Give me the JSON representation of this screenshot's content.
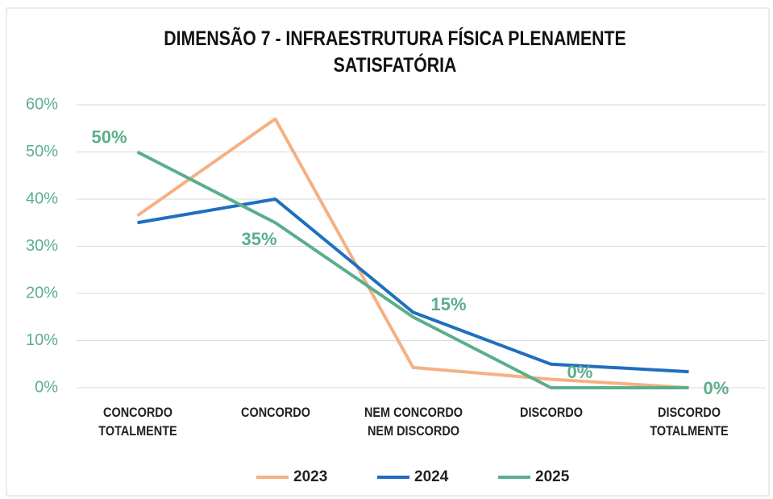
{
  "chart_data": {
    "type": "line",
    "title": "DIMENSÃO 7 - INFRAESTRUTURA FÍSICA  PLENAMENTE SATISFATÓRIA",
    "categories": [
      "CONCORDO TOTALMENTE",
      "CONCORDO",
      "NEM CONCORDO NEM DISCORDO",
      "DISCORDO",
      "DISCORDO TOTALMENTE"
    ],
    "series": [
      {
        "name": "2023",
        "color": "#f4b183",
        "values": [
          36.5,
          57,
          4.3,
          1.8,
          0
        ]
      },
      {
        "name": "2024",
        "color": "#1f6fbf",
        "values": [
          35,
          40,
          16,
          5,
          3.4
        ]
      },
      {
        "name": "2025",
        "color": "#5bae8c",
        "values": [
          50,
          35,
          15,
          0,
          0
        ],
        "value_labels": [
          "50%",
          "35%",
          "15%",
          "0%",
          "0%"
        ]
      }
    ],
    "ylim": [
      0,
      60
    ],
    "yticks": [
      {
        "value": 0,
        "label": "0%"
      },
      {
        "value": 10,
        "label": "10%"
      },
      {
        "value": 20,
        "label": "20%"
      },
      {
        "value": 30,
        "label": "30%"
      },
      {
        "value": 40,
        "label": "40%"
      },
      {
        "value": 50,
        "label": "50%"
      },
      {
        "value": 60,
        "label": "60%"
      }
    ],
    "grid": true,
    "legend": "bottom"
  }
}
